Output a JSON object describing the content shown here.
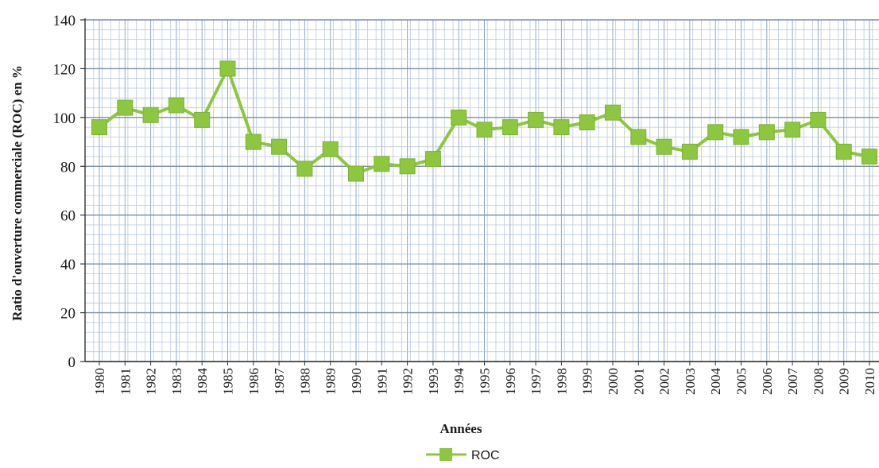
{
  "chart_data": {
    "type": "line",
    "title": "",
    "xlabel": "Années",
    "ylabel": "Ratio d'ouverture commerciale (ROC) en %",
    "ylim": [
      0,
      140
    ],
    "y_ticks": [
      0,
      20,
      40,
      60,
      80,
      100,
      120,
      140
    ],
    "grid": true,
    "legend_position": "bottom",
    "categories": [
      "1980",
      "1981",
      "1982",
      "1983",
      "1984",
      "1985",
      "1986",
      "1987",
      "1988",
      "1989",
      "1990",
      "1991",
      "1992",
      "1993",
      "1994",
      "1995",
      "1996",
      "1997",
      "1998",
      "1999",
      "2000",
      "2001",
      "2002",
      "2003",
      "2004",
      "2005",
      "2006",
      "2007",
      "2008",
      "2009",
      "2010"
    ],
    "series": [
      {
        "name": "ROC",
        "color": "#8dc63f",
        "marker": "square",
        "values": [
          96,
          104,
          101,
          105,
          99,
          120,
          90,
          88,
          79,
          87,
          77,
          81,
          80,
          83,
          100,
          95,
          96,
          99,
          96,
          98,
          102,
          92,
          88,
          86,
          94,
          92,
          94,
          95,
          99,
          86,
          84
        ]
      }
    ]
  }
}
